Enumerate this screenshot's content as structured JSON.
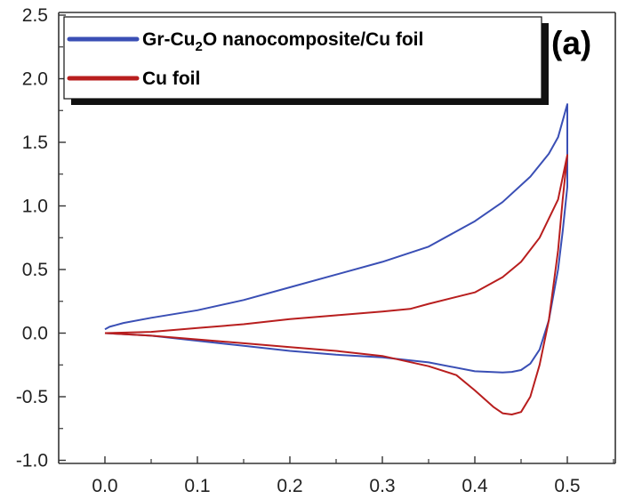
{
  "chart_data": {
    "type": "line",
    "title": "",
    "xlabel": "",
    "ylabel": "",
    "panel_label": "(a)",
    "xlim": [
      -0.05,
      0.53
    ],
    "ylim": [
      -1.0,
      2.5
    ],
    "x_ticks": [
      0.0,
      0.1,
      0.2,
      0.3,
      0.4,
      0.5
    ],
    "x_tick_labels": [
      "0.0",
      "0.1",
      "0.2",
      "0.3",
      "0.4",
      "0.5"
    ],
    "y_ticks": [
      -1.0,
      -0.5,
      0.0,
      0.5,
      1.0,
      1.5,
      2.0,
      2.5
    ],
    "y_tick_labels": [
      "-1.0",
      "-0.5",
      "0.0",
      "0.5",
      "1.0",
      "1.5",
      "2.0",
      "2.5"
    ],
    "grid": false,
    "legend_position": "top-left",
    "series": [
      {
        "legend_main": "Gr-Cu",
        "legend_sub": "2",
        "legend_rest": "O nanocomposite/Cu foil",
        "color": "#3a4fb5",
        "x": [
          0.0,
          0.005,
          0.02,
          0.05,
          0.1,
          0.15,
          0.2,
          0.25,
          0.3,
          0.35,
          0.4,
          0.43,
          0.46,
          0.48,
          0.49,
          0.5,
          0.5,
          0.495,
          0.49,
          0.48,
          0.47,
          0.46,
          0.45,
          0.44,
          0.43,
          0.4,
          0.35,
          0.3,
          0.25,
          0.2,
          0.15,
          0.1,
          0.05,
          0.0
        ],
        "y": [
          0.03,
          0.05,
          0.08,
          0.12,
          0.18,
          0.26,
          0.36,
          0.46,
          0.56,
          0.68,
          0.88,
          1.03,
          1.23,
          1.41,
          1.54,
          1.8,
          1.15,
          0.8,
          0.5,
          0.1,
          -0.13,
          -0.24,
          -0.29,
          -0.305,
          -0.31,
          -0.3,
          -0.23,
          -0.19,
          -0.17,
          -0.14,
          -0.1,
          -0.06,
          -0.02,
          0.0
        ]
      },
      {
        "name": "Cu foil",
        "color": "#b81e1e",
        "x": [
          0.0,
          0.05,
          0.1,
          0.15,
          0.2,
          0.25,
          0.3,
          0.33,
          0.35,
          0.4,
          0.43,
          0.45,
          0.47,
          0.49,
          0.5,
          0.495,
          0.49,
          0.48,
          0.47,
          0.46,
          0.45,
          0.44,
          0.43,
          0.42,
          0.4,
          0.38,
          0.35,
          0.3,
          0.25,
          0.2,
          0.15,
          0.1,
          0.05,
          0.0
        ],
        "y": [
          0.0,
          0.01,
          0.04,
          0.07,
          0.11,
          0.14,
          0.17,
          0.19,
          0.23,
          0.32,
          0.44,
          0.56,
          0.75,
          1.05,
          1.4,
          1.05,
          0.65,
          0.1,
          -0.25,
          -0.5,
          -0.62,
          -0.64,
          -0.63,
          -0.58,
          -0.45,
          -0.33,
          -0.26,
          -0.18,
          -0.14,
          -0.11,
          -0.08,
          -0.05,
          -0.02,
          0.0
        ]
      }
    ]
  }
}
